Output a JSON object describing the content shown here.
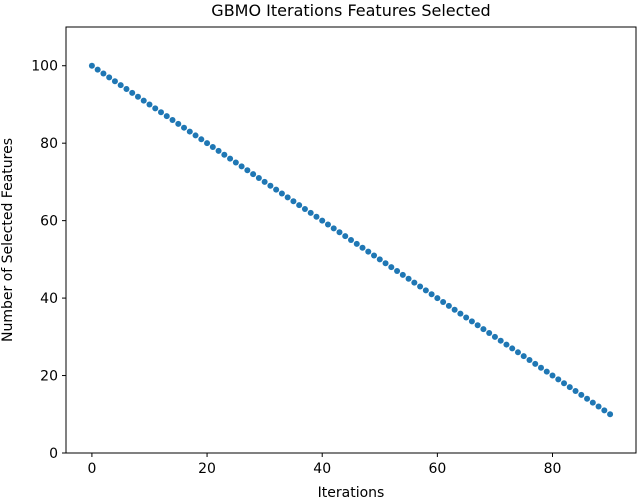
{
  "chart_data": {
    "type": "scatter",
    "title": "GBMO Iterations Features Selected",
    "xlabel": "Iterations",
    "ylabel": "Number of Selected Features",
    "x": [
      0,
      1,
      2,
      3,
      4,
      5,
      6,
      7,
      8,
      9,
      10,
      11,
      12,
      13,
      14,
      15,
      16,
      17,
      18,
      19,
      20,
      21,
      22,
      23,
      24,
      25,
      26,
      27,
      28,
      29,
      30,
      31,
      32,
      33,
      34,
      35,
      36,
      37,
      38,
      39,
      40,
      41,
      42,
      43,
      44,
      45,
      46,
      47,
      48,
      49,
      50,
      51,
      52,
      53,
      54,
      55,
      56,
      57,
      58,
      59,
      60,
      61,
      62,
      63,
      64,
      65,
      66,
      67,
      68,
      69,
      70,
      71,
      72,
      73,
      74,
      75,
      76,
      77,
      78,
      79,
      80,
      81,
      82,
      83,
      84,
      85,
      86,
      87,
      88,
      89,
      90
    ],
    "values": [
      100,
      99,
      98,
      97,
      96,
      95,
      94,
      93,
      92,
      91,
      90,
      89,
      88,
      87,
      86,
      85,
      84,
      83,
      82,
      81,
      80,
      79,
      78,
      77,
      76,
      75,
      74,
      73,
      72,
      71,
      70,
      69,
      68,
      67,
      66,
      65,
      64,
      63,
      62,
      61,
      60,
      59,
      58,
      57,
      56,
      55,
      54,
      53,
      52,
      51,
      50,
      49,
      48,
      47,
      46,
      45,
      44,
      43,
      42,
      41,
      40,
      39,
      38,
      37,
      36,
      35,
      34,
      33,
      32,
      31,
      30,
      29,
      28,
      27,
      26,
      25,
      24,
      23,
      22,
      21,
      20,
      19,
      18,
      17,
      16,
      15,
      14,
      13,
      12,
      11,
      10
    ],
    "color": "#1f77b4",
    "xlim": [
      -4.5,
      94.5
    ],
    "xticks": [
      0,
      20,
      40,
      60,
      80
    ],
    "ylim": [
      0,
      110
    ],
    "yticks": [
      0,
      20,
      40,
      60,
      80,
      100
    ],
    "grid": false
  }
}
